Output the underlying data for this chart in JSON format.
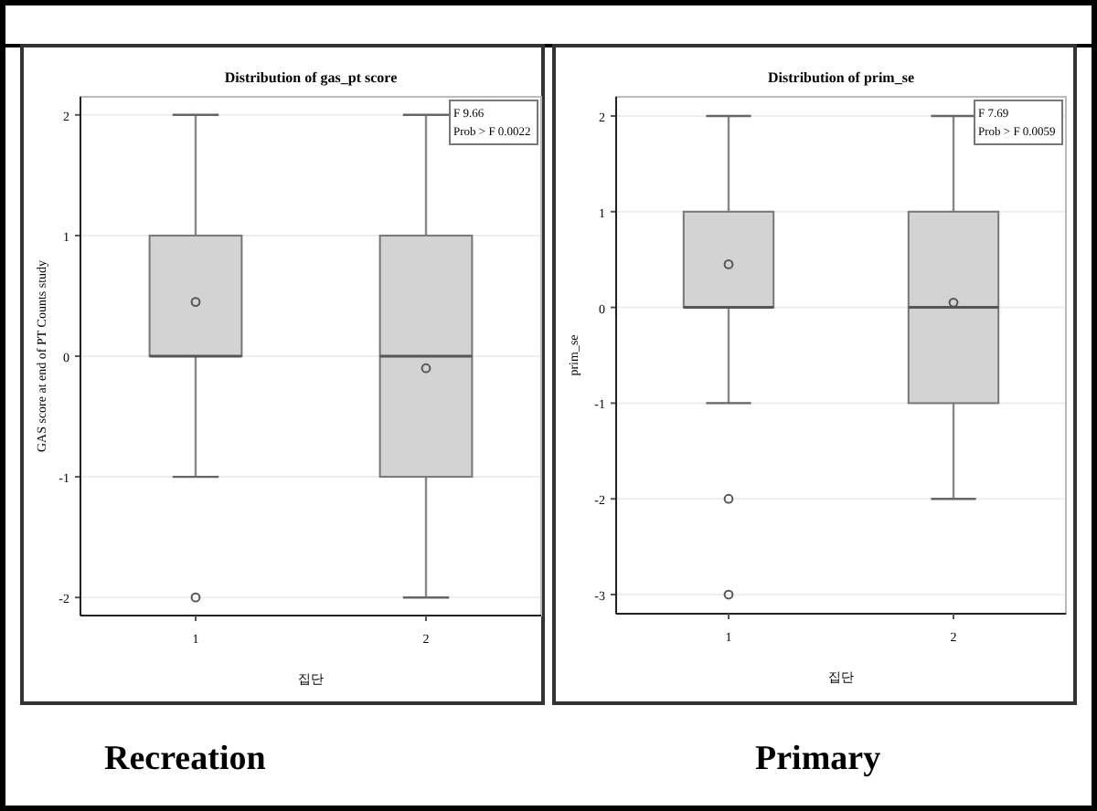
{
  "chart_data": [
    {
      "type": "box",
      "title": "Distribution of gas_pt score",
      "xlabel": "집단",
      "ylabel": "GAS score at end of PT Counts study",
      "categories": [
        "1",
        "2"
      ],
      "color": "#d3d3d3",
      "boxes": [
        {
          "low": -1,
          "q1": 0,
          "median": 0,
          "q3": 1,
          "high": 2,
          "mean": 0.45,
          "outliers": [
            -2
          ]
        },
        {
          "low": -2,
          "q1": -1,
          "median": 0,
          "q3": 1,
          "high": 2,
          "mean": -0.1
        }
      ],
      "ylim": [
        -2.15,
        2.15
      ],
      "yticks": [
        -2,
        -1,
        0,
        1,
        2
      ],
      "grid": "y",
      "annotations": [
        "F 9.66",
        "Prob > F 0.0022",
        "Recreation"
      ]
    },
    {
      "type": "box",
      "title": "Distribution of prim_se",
      "xlabel": "집단",
      "ylabel": "prim_se",
      "categories": [
        "1",
        "2"
      ],
      "color": "#d3d3d3",
      "boxes": [
        {
          "low": -1,
          "q1": 0,
          "median": 0,
          "q3": 1,
          "high": 2,
          "mean": 0.45,
          "outliers": [
            -2,
            -3
          ]
        },
        {
          "low": -2,
          "q1": -1,
          "median": 0,
          "q3": 1,
          "high": 2,
          "mean": 0.05
        }
      ],
      "ylim": [
        -3.2,
        2.2
      ],
      "yticks": [
        -3,
        -2,
        -1,
        0,
        1,
        2
      ],
      "grid": "y",
      "annotations": [
        "F 7.69",
        "Prob > F 0.0059",
        "Primary"
      ]
    }
  ]
}
